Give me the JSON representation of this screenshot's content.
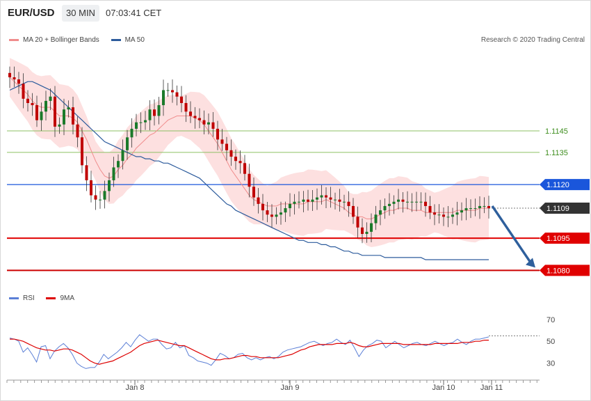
{
  "header": {
    "symbol": "EUR/USD",
    "timeframe": "30 MIN",
    "time": "07:03:41 CET"
  },
  "legend": {
    "main": [
      {
        "label": "MA 20 + Bollinger Bands",
        "color": "#f08c8c"
      },
      {
        "label": "MA 50",
        "color": "#2c5b9c"
      }
    ],
    "rsi": [
      {
        "label": "RSI",
        "color": "#5b7fd6"
      },
      {
        "label": "9MA",
        "color": "#dd0000"
      }
    ]
  },
  "copyright": "Research © 2020 Trading Central",
  "colors": {
    "up": "#1a7a2a",
    "down": "#c00000",
    "bollinger": "#fde0e0",
    "ma20": "#f08c8c",
    "ma50": "#2c5b9c",
    "resistance": "#1a56db",
    "support": "#e00000",
    "target": "#cc0000",
    "pivot": "#8cc063",
    "current": "#333333",
    "arrow": "#2e5f9c"
  },
  "chart_data": [
    {
      "type": "candlestick",
      "x_ticks": [
        "Jan 8",
        "Jan 9",
        "Jan 10",
        "Jan 11"
      ],
      "ylim": [
        1.1073,
        1.1182
      ],
      "levels": [
        {
          "label": "1.1145",
          "value": 1.1145,
          "kind": "pivot"
        },
        {
          "label": "1.1135",
          "value": 1.1135,
          "kind": "pivot"
        },
        {
          "label": "1.1120",
          "value": 1.112,
          "kind": "resistance"
        },
        {
          "label": "1.1109",
          "value": 1.1109,
          "kind": "current"
        },
        {
          "label": "1.1095",
          "value": 1.1095,
          "kind": "support"
        },
        {
          "label": "1.1080",
          "value": 1.108,
          "kind": "target"
        }
      ],
      "arrow": {
        "from": 1.111,
        "to": 1.108
      },
      "close_series": [
        1.117,
        1.1169,
        1.1167,
        1.116,
        1.1158,
        1.1157,
        1.115,
        1.1154,
        1.1159,
        1.1161,
        1.1147,
        1.1148,
        1.1155,
        1.1156,
        1.1148,
        1.1142,
        1.1129,
        1.1122,
        1.1115,
        1.1113,
        1.1113,
        1.1117,
        1.1122,
        1.1128,
        1.1131,
        1.1136,
        1.1142,
        1.1146,
        1.1149,
        1.1149,
        1.115,
        1.1155,
        1.1152,
        1.1157,
        1.1164,
        1.1164,
        1.1163,
        1.1161,
        1.1158,
        1.1154,
        1.1152,
        1.1151,
        1.115,
        1.1148,
        1.1149,
        1.1146,
        1.1141,
        1.1139,
        1.1136,
        1.1133,
        1.1131,
        1.113,
        1.1125,
        1.1119,
        1.1114,
        1.1111,
        1.1108,
        1.1106,
        1.1105,
        1.1106,
        1.1107,
        1.1109,
        1.1111,
        1.1112,
        1.1112,
        1.1113,
        1.1112,
        1.1113,
        1.1114,
        1.1115,
        1.1114,
        1.1113,
        1.1113,
        1.1112,
        1.1112,
        1.111,
        1.1105,
        1.11,
        1.1097,
        1.1098,
        1.1102,
        1.1106,
        1.1108,
        1.111,
        1.1111,
        1.1112,
        1.1113,
        1.1112,
        1.1112,
        1.1112,
        1.1112,
        1.1112,
        1.111,
        1.1107,
        1.1106,
        1.1106,
        1.1105,
        1.1105,
        1.1106,
        1.1107,
        1.1108,
        1.1109,
        1.1109,
        1.1109,
        1.111,
        1.111,
        1.1109
      ],
      "ma20": [
        1.117,
        1.1168,
        1.1166,
        1.1164,
        1.1162,
        1.1159,
        1.1157,
        1.1156,
        1.1156,
        1.1156,
        1.1154,
        1.1152,
        1.1152,
        1.1152,
        1.1151,
        1.1149,
        1.1145,
        1.1141,
        1.1136,
        1.1131,
        1.1127,
        1.1124,
        1.1123,
        1.1124,
        1.1127,
        1.1129,
        1.1132,
        1.1134,
        1.1137,
        1.1139,
        1.1141,
        1.1143,
        1.1144,
        1.1146,
        1.1148,
        1.115,
        1.1151,
        1.1152,
        1.1152,
        1.1152,
        1.1152,
        1.1151,
        1.115,
        1.1148,
        1.1145,
        1.1142,
        1.1139,
        1.1135,
        1.1131,
        1.1127,
        1.1124,
        1.1121,
        1.1118,
        1.1115,
        1.1113,
        1.1112,
        1.1111,
        1.111,
        1.111,
        1.111,
        1.1111,
        1.1111,
        1.1111,
        1.1111,
        1.1111,
        1.1111,
        1.1112,
        1.1112,
        1.1112,
        1.1112,
        1.1113,
        1.1112,
        1.1111,
        1.111,
        1.1109,
        1.1107,
        1.1106,
        1.1105,
        1.1105,
        1.1104,
        1.1104,
        1.1105,
        1.1106,
        1.1107,
        1.1108,
        1.1108,
        1.1109,
        1.1109,
        1.1109,
        1.1108,
        1.1108,
        1.1108,
        1.1107,
        1.1107,
        1.1107,
        1.1107,
        1.1107,
        1.1107,
        1.1107,
        1.1108,
        1.1108,
        1.1108,
        1.1108,
        1.1108,
        1.1109,
        1.1109,
        1.1109
      ],
      "ma50": [
        1.1164,
        1.1165,
        1.1166,
        1.1167,
        1.1168,
        1.1168,
        1.1167,
        1.1166,
        1.1165,
        1.1164,
        1.1162,
        1.116,
        1.1158,
        1.1156,
        1.1154,
        1.1152,
        1.115,
        1.1148,
        1.1146,
        1.1144,
        1.1142,
        1.114,
        1.1139,
        1.1138,
        1.1137,
        1.1136,
        1.1135,
        1.1134,
        1.1133,
        1.1133,
        1.1132,
        1.1132,
        1.1131,
        1.1131,
        1.113,
        1.113,
        1.1129,
        1.1128,
        1.1127,
        1.1126,
        1.1125,
        1.1124,
        1.1123,
        1.1121,
        1.1119,
        1.1117,
        1.1115,
        1.1113,
        1.1111,
        1.111,
        1.1108,
        1.1107,
        1.1106,
        1.1105,
        1.1104,
        1.1103,
        1.1102,
        1.1101,
        1.11,
        1.1099,
        1.1098,
        1.1097,
        1.1096,
        1.1095,
        1.1094,
        1.1094,
        1.1093,
        1.1093,
        1.1093,
        1.1092,
        1.1092,
        1.1091,
        1.1091,
        1.109,
        1.1089,
        1.1089,
        1.1088,
        1.1088,
        1.1087,
        1.1087,
        1.1087,
        1.1087,
        1.1087,
        1.1086,
        1.1086,
        1.1086,
        1.1086,
        1.1086,
        1.1086,
        1.1086,
        1.1086,
        1.1086,
        1.1085,
        1.1085,
        1.1085,
        1.1085,
        1.1085,
        1.1085,
        1.1085,
        1.1085,
        1.1085,
        1.1085,
        1.1085,
        1.1085,
        1.1085,
        1.1085,
        1.1085
      ]
    },
    {
      "type": "line",
      "name_hint": "RSI panel",
      "x_ticks": [
        "Jan 8",
        "Jan 9",
        "Jan 10",
        "Jan 11"
      ],
      "y_ticks": [
        30,
        50,
        70
      ],
      "ylim": [
        17,
        82
      ],
      "dotted_level": 55,
      "rsi": [
        53,
        52,
        50,
        40,
        44,
        38,
        31,
        45,
        46,
        34,
        41,
        45,
        48,
        44,
        38,
        30,
        27,
        25,
        26,
        26,
        31,
        38,
        34,
        37,
        40,
        44,
        49,
        45,
        51,
        56,
        53,
        50,
        52,
        52,
        47,
        43,
        44,
        49,
        44,
        46,
        37,
        35,
        32,
        31,
        30,
        28,
        33,
        39,
        37,
        34,
        35,
        38,
        39,
        35,
        33,
        35,
        33,
        35,
        36,
        34,
        36,
        40,
        42,
        43,
        44,
        45,
        47,
        49,
        50,
        48,
        46,
        48,
        49,
        52,
        49,
        47,
        51,
        44,
        36,
        42,
        46,
        48,
        51,
        50,
        44,
        47,
        50,
        47,
        44,
        46,
        48,
        49,
        47,
        46,
        48,
        50,
        48,
        46,
        48,
        49,
        52,
        49,
        47,
        50,
        52,
        52,
        53,
        54
      ],
      "ma9": [
        52,
        52,
        51,
        50,
        48,
        46,
        44,
        43,
        42,
        42,
        41,
        42,
        43,
        43,
        42,
        40,
        38,
        35,
        32,
        30,
        29,
        30,
        31,
        32,
        34,
        36,
        38,
        40,
        43,
        46,
        48,
        49,
        50,
        51,
        50,
        49,
        48,
        47,
        46,
        46,
        44,
        42,
        40,
        38,
        36,
        34,
        33,
        33,
        34,
        34,
        35,
        36,
        37,
        37,
        36,
        36,
        35,
        35,
        35,
        35,
        35,
        36,
        37,
        38,
        40,
        42,
        43,
        45,
        46,
        47,
        47,
        47,
        47,
        48,
        48,
        48,
        49,
        48,
        46,
        45,
        45,
        46,
        47,
        48,
        48,
        48,
        48,
        48,
        47,
        47,
        47,
        47,
        47,
        47,
        47,
        48,
        48,
        48,
        48,
        48,
        48,
        49,
        49,
        49,
        50,
        50,
        51,
        51
      ]
    }
  ]
}
